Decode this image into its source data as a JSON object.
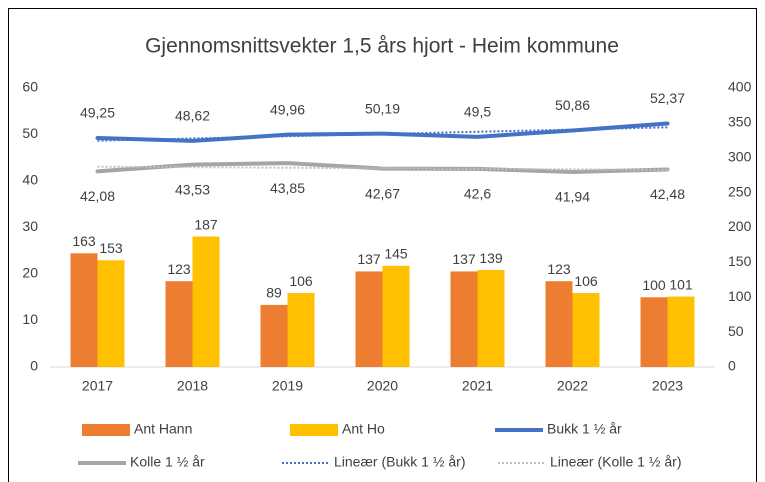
{
  "chart_data": {
    "type": "combo",
    "title": "Gjennomsnittsvekter 1,5 års hjort - Heim kommune",
    "categories": [
      "2017",
      "2018",
      "2019",
      "2020",
      "2021",
      "2022",
      "2023"
    ],
    "ylim": [
      0,
      60
    ],
    "yticks": [
      0,
      10,
      20,
      30,
      40,
      50,
      60
    ],
    "y2lim": [
      0,
      400
    ],
    "y2ticks": [
      0,
      50,
      100,
      150,
      200,
      250,
      300,
      350,
      400
    ],
    "legend": "bottom",
    "series": [
      {
        "name": "Ant Hann",
        "type": "bar",
        "axis": "y2",
        "color": "#ed7d31",
        "values": [
          163,
          123,
          89,
          137,
          137,
          123,
          100
        ]
      },
      {
        "name": "Ant Ho",
        "type": "bar",
        "axis": "y2",
        "color": "#ffc000",
        "values": [
          153,
          187,
          106,
          145,
          139,
          106,
          101
        ]
      },
      {
        "name": "Bukk 1 ½ år",
        "type": "line",
        "color": "#4472c4",
        "label_position": "above",
        "values": [
          49.25,
          48.62,
          49.96,
          50.19,
          49.5,
          50.86,
          52.37
        ],
        "value_labels": [
          "49,25",
          "48,62",
          "49,96",
          "50,19",
          "49,5",
          "50,86",
          "52,37"
        ]
      },
      {
        "name": "Kolle 1 ½ år",
        "type": "line",
        "color": "#a5a5a5",
        "label_position": "below",
        "values": [
          42.08,
          43.53,
          43.85,
          42.67,
          42.6,
          41.94,
          42.48
        ],
        "value_labels": [
          "42,08",
          "43,53",
          "43,85",
          "42,67",
          "42,6",
          "41,94",
          "42,48"
        ]
      },
      {
        "name": "Lineær (Bukk 1 ½ år)",
        "type": "line",
        "style": "dotted",
        "color": "#4472c4",
        "values": [
          48.67,
          49.15,
          49.63,
          50.11,
          50.59,
          51.06,
          51.54
        ]
      },
      {
        "name": "Lineær (Kolle 1 ½ år)",
        "type": "line",
        "style": "dotted",
        "color": "#c0c0c0",
        "values": [
          43.08,
          42.97,
          42.85,
          42.74,
          42.62,
          42.51,
          42.39
        ]
      }
    ]
  }
}
